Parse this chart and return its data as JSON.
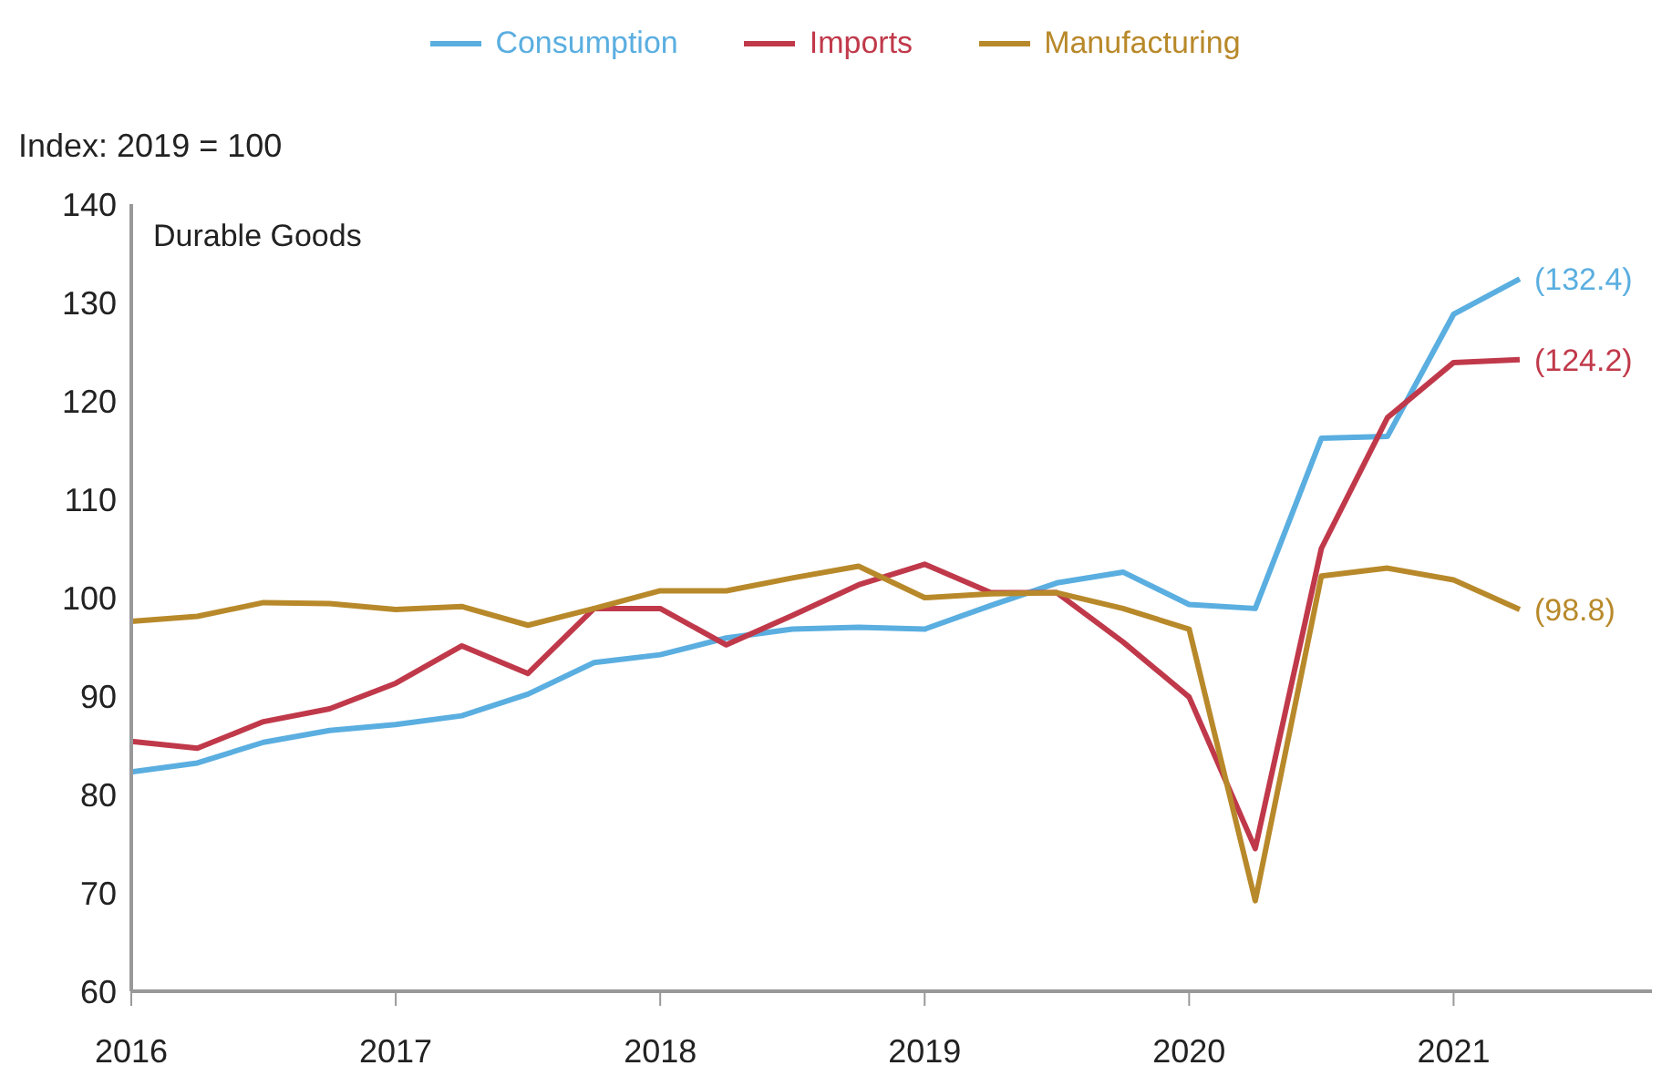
{
  "chart_data": {
    "type": "line",
    "title": "Durable Goods",
    "ylabel": "Index: 2019 = 100",
    "x": [
      2016,
      2016.25,
      2016.5,
      2016.75,
      2017,
      2017.25,
      2017.5,
      2017.75,
      2018,
      2018.25,
      2018.5,
      2018.75,
      2019,
      2019.25,
      2019.5,
      2019.75,
      2020,
      2020.25,
      2020.5,
      2020.75,
      2021,
      2021.25
    ],
    "series": [
      {
        "name": "Consumption",
        "color": "#5aaee0",
        "values": [
          82.3,
          83.2,
          85.3,
          86.5,
          87.1,
          88.0,
          90.2,
          93.4,
          94.2,
          95.9,
          96.8,
          97.0,
          96.8,
          99.2,
          101.5,
          102.6,
          99.3,
          98.9,
          116.2,
          116.4,
          128.8,
          132.4
        ],
        "value_labels": [
          null,
          null,
          null,
          null,
          null,
          null,
          null,
          null,
          null,
          null,
          null,
          null,
          null,
          null,
          null,
          null,
          null,
          null,
          null,
          null,
          null,
          "(132.4)"
        ]
      },
      {
        "name": "Imports",
        "color": "#c0394a",
        "values": [
          85.4,
          84.7,
          87.4,
          88.7,
          91.3,
          95.1,
          92.3,
          98.9,
          98.9,
          95.2,
          98.2,
          101.3,
          103.4,
          100.5,
          100.5,
          95.5,
          89.9,
          74.5,
          105.0,
          118.3,
          123.9,
          124.2
        ],
        "value_labels": [
          null,
          null,
          null,
          null,
          null,
          null,
          null,
          null,
          null,
          null,
          null,
          null,
          null,
          null,
          null,
          null,
          null,
          null,
          null,
          null,
          null,
          "(124.2)"
        ]
      },
      {
        "name": "Manufacturing",
        "color": "#b8892a",
        "values": [
          97.6,
          98.1,
          99.5,
          99.4,
          98.8,
          99.1,
          97.2,
          98.9,
          100.7,
          100.7,
          102.0,
          103.2,
          100.0,
          100.4,
          100.5,
          98.9,
          96.8,
          69.2,
          102.2,
          103.0,
          101.8,
          98.8
        ],
        "value_labels": [
          null,
          null,
          null,
          null,
          null,
          null,
          null,
          null,
          null,
          null,
          null,
          null,
          null,
          null,
          null,
          null,
          null,
          null,
          null,
          null,
          null,
          "(98.8)"
        ]
      }
    ],
    "xlim": [
      2016,
      2021.75
    ],
    "xticks": [
      2016,
      2017,
      2018,
      2019,
      2020,
      2021
    ],
    "ylim": [
      60,
      140
    ],
    "yticks": [
      60,
      70,
      80,
      90,
      100,
      110,
      120,
      130,
      140
    ],
    "legend": "top",
    "marker": "none",
    "line_style": "solid"
  }
}
